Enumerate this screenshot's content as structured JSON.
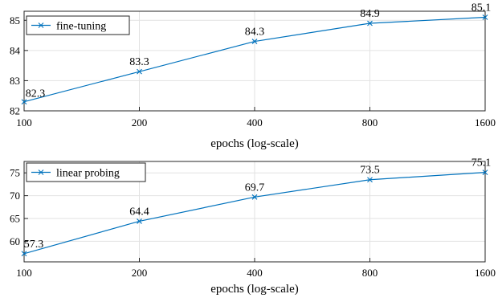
{
  "chart_data": [
    {
      "type": "line",
      "x": [
        100,
        200,
        400,
        800,
        1600
      ],
      "xscale": "log",
      "xticks": [
        "100",
        "200",
        "400",
        "800",
        "1600"
      ],
      "xlabel": "epochs (log-scale)",
      "ylim": [
        82,
        85.3
      ],
      "yticks": [
        82,
        83,
        84,
        85
      ],
      "grid": true,
      "legend_position": "top-left",
      "series": [
        {
          "name": "fine-tuning",
          "values": [
            82.3,
            83.3,
            84.3,
            84.9,
            85.1
          ],
          "labels": [
            "82.3",
            "83.3",
            "84.3",
            "84.9",
            "85.1"
          ],
          "marker": "x",
          "color": "#0072BD"
        }
      ]
    },
    {
      "type": "line",
      "x": [
        100,
        200,
        400,
        800,
        1600
      ],
      "xscale": "log",
      "xticks": [
        "100",
        "200",
        "400",
        "800",
        "1600"
      ],
      "xlabel": "epochs (log-scale)",
      "ylim": [
        55.5,
        77.5
      ],
      "yticks": [
        60,
        65,
        70,
        75
      ],
      "grid": true,
      "legend_position": "top-left",
      "series": [
        {
          "name": "linear probing",
          "values": [
            57.3,
            64.4,
            69.7,
            73.5,
            75.1
          ],
          "labels": [
            "57.3",
            "64.4",
            "69.7",
            "73.5",
            "75.1"
          ],
          "marker": "x",
          "color": "#0072BD"
        }
      ]
    }
  ]
}
